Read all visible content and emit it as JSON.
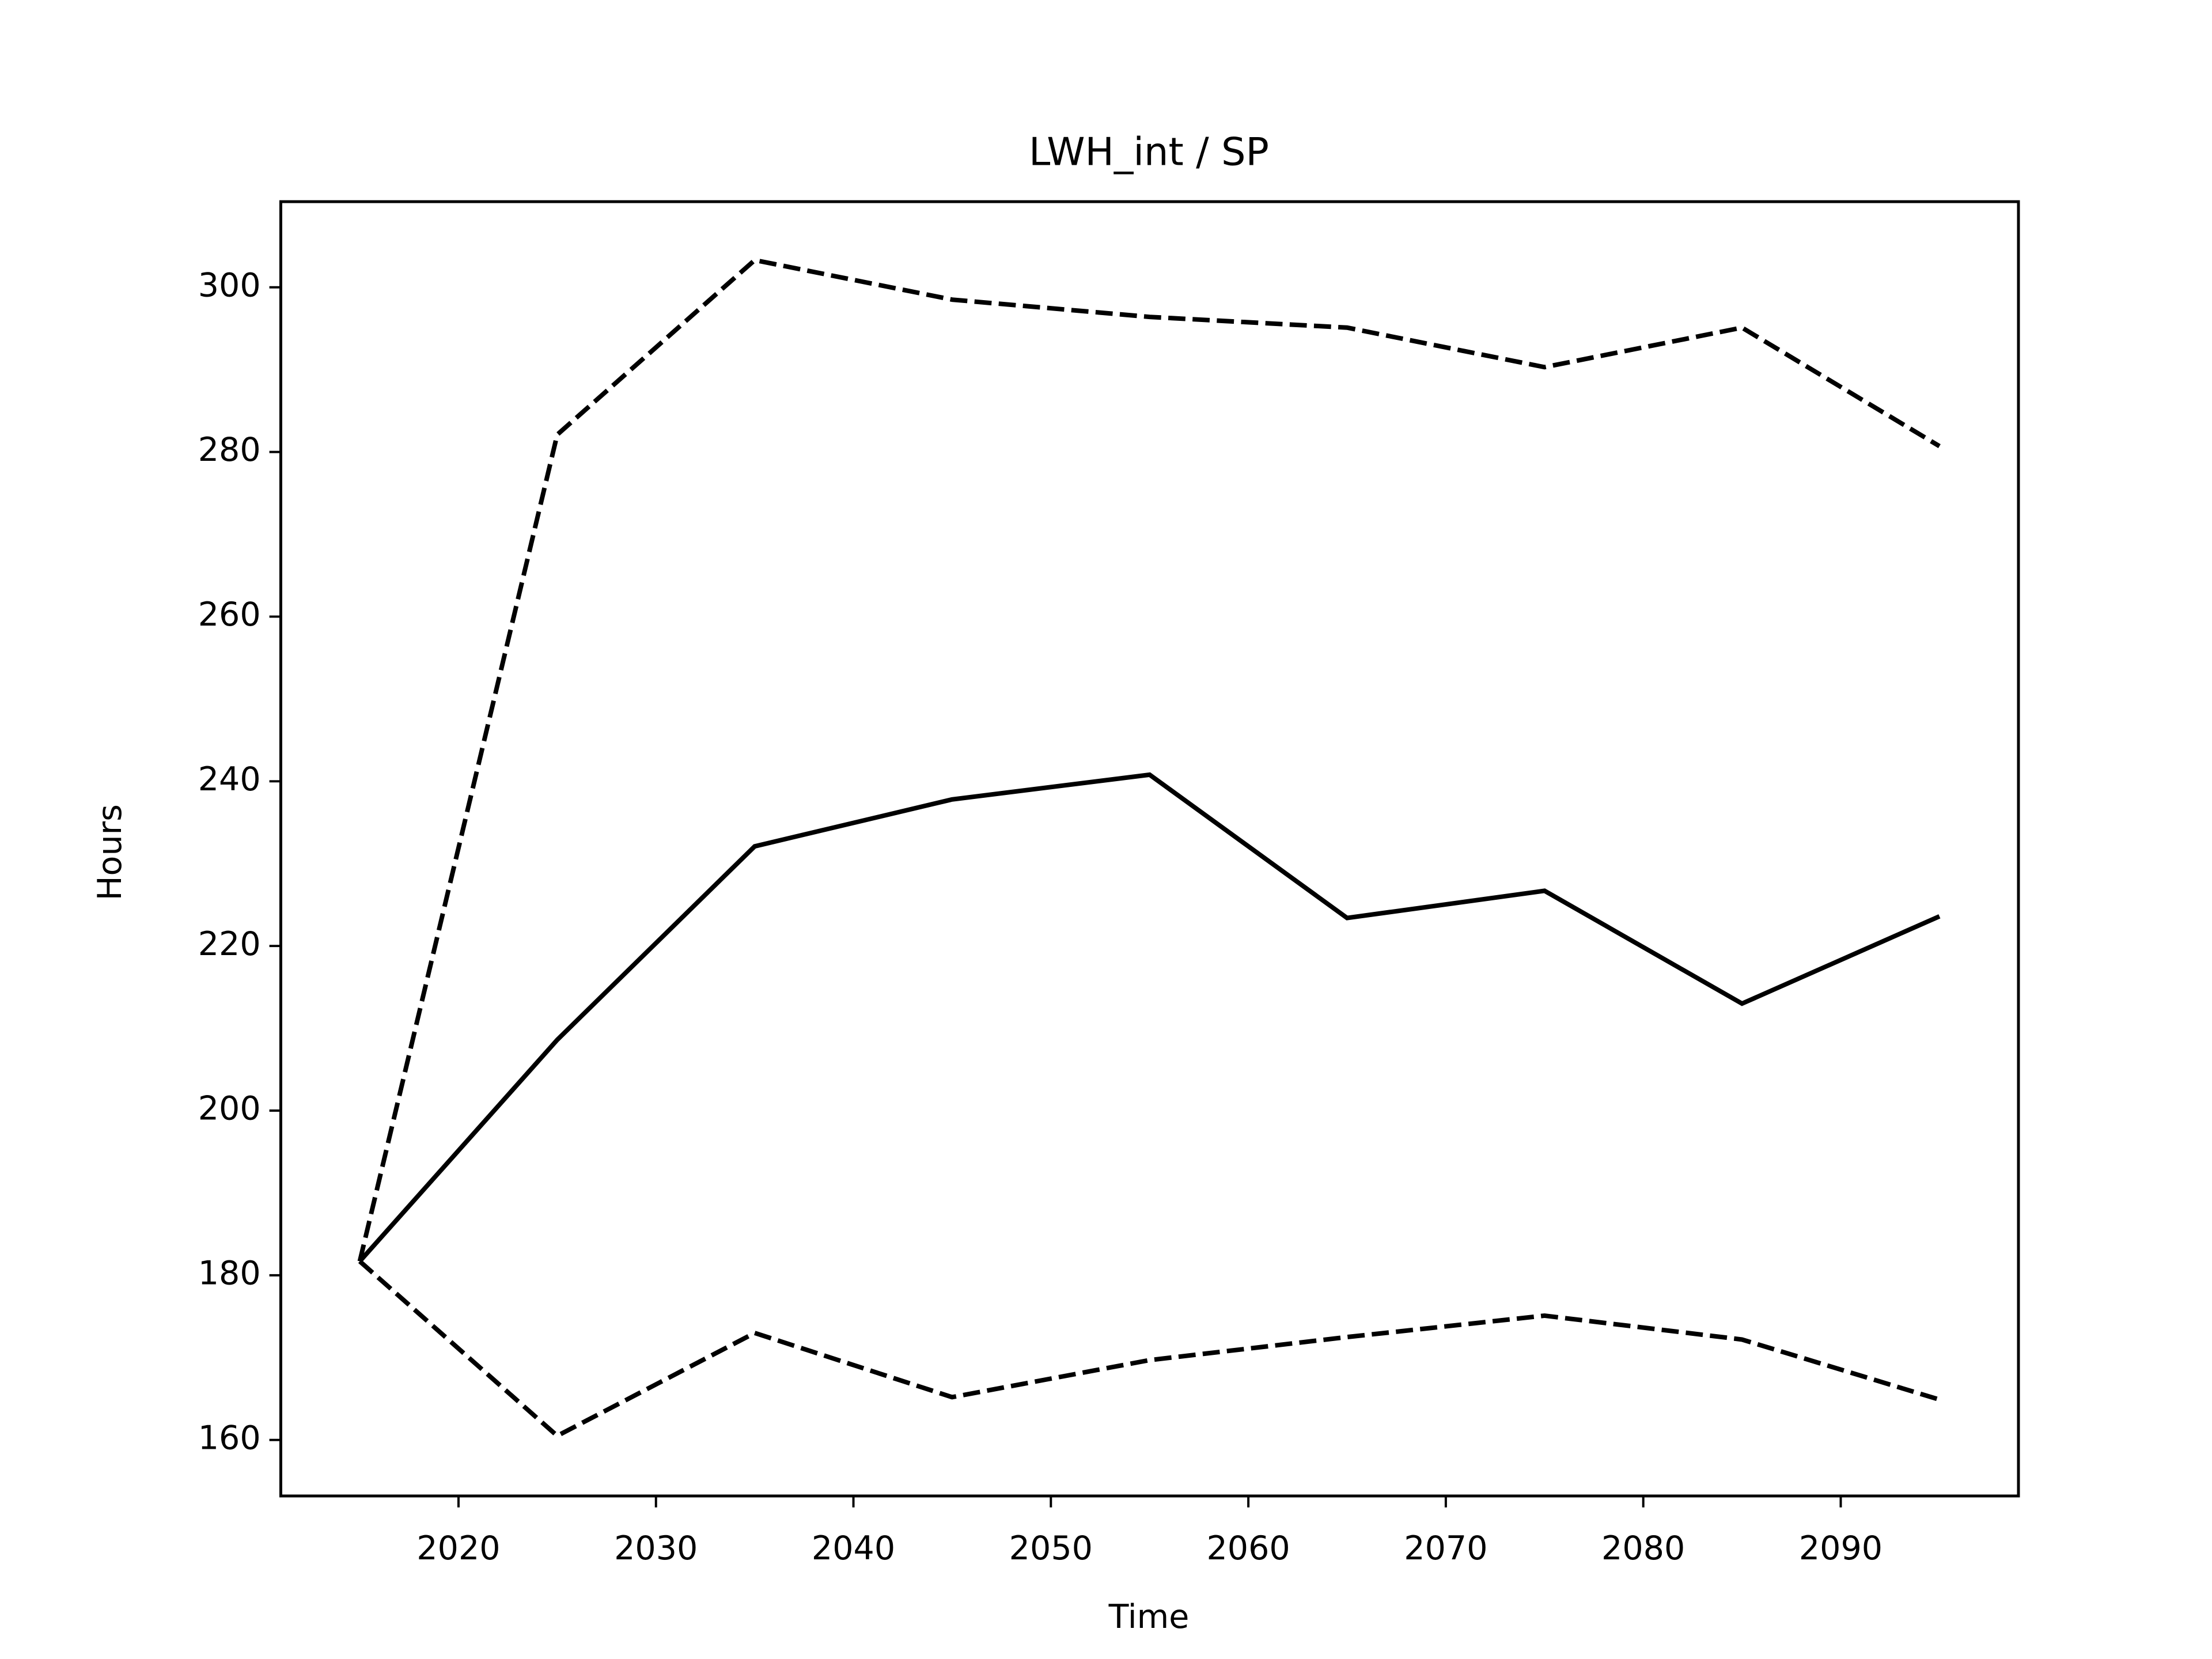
{
  "chart_data": {
    "type": "line",
    "title": "LWH_int / SP",
    "x_label": "Time",
    "y_label": "Hours",
    "x": [
      2015,
      2025,
      2035,
      2045,
      2055,
      2065,
      2075,
      2085,
      2095
    ],
    "series": [
      {
        "color": "#000000",
        "style": "solid",
        "values": [
          181.7,
          208.6,
          232.1,
          237.8,
          240.8,
          223.4,
          226.7,
          213.0,
          223.6
        ]
      },
      {
        "color": "#000000",
        "style": "dashed",
        "values": [
          181.7,
          282.1,
          303.3,
          298.5,
          296.4,
          295.1,
          290.3,
          295.1,
          280.7
        ]
      },
      {
        "color": "#000000",
        "style": "dashed",
        "values": [
          181.7,
          160.5,
          173.0,
          165.2,
          169.7,
          172.5,
          175.1,
          172.2,
          164.9
        ]
      }
    ],
    "xlim": [
      2011,
      2099
    ],
    "xticks": [
      2020,
      2030,
      2040,
      2050,
      2060,
      2070,
      2080,
      2090
    ],
    "ylim": [
      153.2,
      310.4
    ],
    "yticks": [
      160,
      180,
      200,
      220,
      240,
      260,
      280,
      300
    ]
  }
}
